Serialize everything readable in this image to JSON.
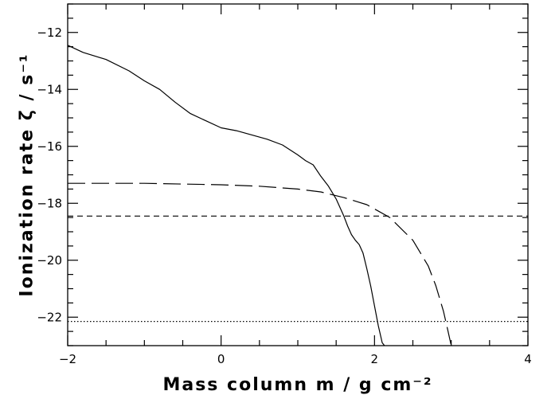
{
  "chart_data": {
    "type": "line",
    "title": "",
    "xlabel": "Mass column m / g cm⁻²",
    "ylabel": "Ionization rate ζ / s⁻¹",
    "xlim": [
      -2,
      4
    ],
    "ylim": [
      -23,
      -11
    ],
    "x_ticks": [
      -2,
      0,
      2,
      4
    ],
    "x_tick_labels": [
      "−2",
      "0",
      "2",
      "4"
    ],
    "y_ticks": [
      -12,
      -14,
      -16,
      -18,
      -20,
      -22
    ],
    "y_tick_labels": [
      "−12",
      "−14",
      "−16",
      "−18",
      "−20",
      "−22"
    ],
    "grid": false,
    "legend": "none",
    "series": [
      {
        "style": "solid",
        "x": [
          -2.0,
          -1.8,
          -1.5,
          -1.2,
          -1.0,
          -0.8,
          -0.6,
          -0.4,
          -0.2,
          0.0,
          0.2,
          0.4,
          0.6,
          0.8,
          1.0,
          1.1,
          1.2,
          1.3,
          1.4,
          1.5,
          1.6,
          1.65,
          1.7,
          1.75,
          1.8,
          1.85,
          1.9,
          1.95,
          2.0,
          2.05,
          2.1,
          2.13
        ],
        "y": [
          -12.45,
          -12.7,
          -12.95,
          -13.35,
          -13.7,
          -14.0,
          -14.45,
          -14.85,
          -15.1,
          -15.35,
          -15.45,
          -15.6,
          -15.75,
          -15.95,
          -16.3,
          -16.5,
          -16.65,
          -17.05,
          -17.4,
          -17.85,
          -18.45,
          -18.8,
          -19.1,
          -19.3,
          -19.45,
          -19.75,
          -20.3,
          -20.9,
          -21.6,
          -22.3,
          -22.9,
          -23.0
        ]
      },
      {
        "style": "long-dash",
        "x": [
          -2.0,
          -1.0,
          0.0,
          0.5,
          1.0,
          1.3,
          1.6,
          1.9,
          2.2,
          2.5,
          2.7,
          2.8,
          2.9,
          2.95,
          3.0
        ],
        "y": [
          -17.3,
          -17.3,
          -17.35,
          -17.4,
          -17.5,
          -17.6,
          -17.8,
          -18.05,
          -18.5,
          -19.3,
          -20.2,
          -20.9,
          -21.8,
          -22.4,
          -23.0
        ]
      },
      {
        "style": "short-dash",
        "x": [
          -2.0,
          4.0
        ],
        "y": [
          -18.45,
          -18.45
        ]
      },
      {
        "style": "dotted",
        "x": [
          -2.0,
          4.0
        ],
        "y": [
          -22.15,
          -22.15
        ]
      }
    ]
  }
}
